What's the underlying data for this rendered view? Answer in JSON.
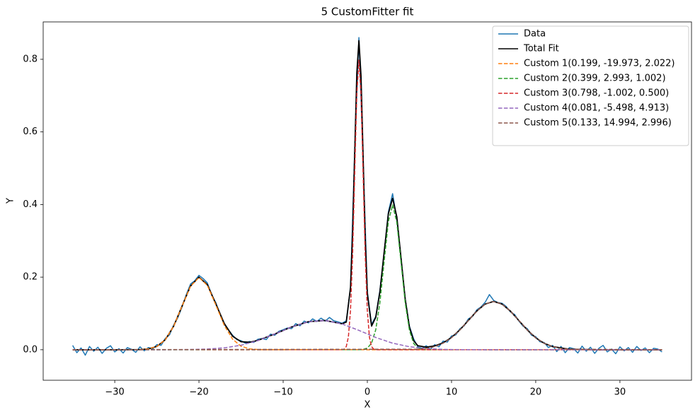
{
  "chart_data": {
    "type": "line",
    "title": "5 CustomFitter fit",
    "xlabel": "X",
    "ylabel": "Y",
    "xlim": [
      -38.5,
      38.5
    ],
    "ylim": [
      -0.084,
      0.903
    ],
    "xticks": [
      {
        "value": -30,
        "label": "−30"
      },
      {
        "value": -20,
        "label": "−20"
      },
      {
        "value": -10,
        "label": "−10"
      },
      0,
      10,
      20,
      30
    ],
    "yticks": [
      {
        "value": 0,
        "label": "0.0"
      },
      0.2,
      0.4,
      0.6,
      0.8
    ],
    "grid": false,
    "legend": "upper right",
    "series": [
      {
        "name": "Data",
        "color": "#1f77b4",
        "linestyle": "solid",
        "x": [
          -35,
          -34.5,
          -34,
          -33.5,
          -33,
          -32.5,
          -32,
          -31.5,
          -31,
          -30.5,
          -30,
          -29.5,
          -29,
          -28.5,
          -28,
          -27.5,
          -27,
          -26.5,
          -26,
          -25.5,
          -25,
          -24.5,
          -24,
          -23.5,
          -23,
          -22.5,
          -22,
          -21.5,
          -21,
          -20.5,
          -20,
          -19.5,
          -19,
          -18.5,
          -18,
          -17.5,
          -17,
          -16.5,
          -16,
          -15.5,
          -15,
          -14.5,
          -14,
          -13.5,
          -13,
          -12.5,
          -12,
          -11.5,
          -11,
          -10.5,
          -10,
          -9.5,
          -9,
          -8.5,
          -8,
          -7.5,
          -7,
          -6.5,
          -6,
          -5.5,
          -5,
          -4.5,
          -4,
          -3.5,
          -3,
          -2.5,
          -2,
          -1.5,
          -1,
          -0.5,
          0,
          0.5,
          1,
          1.5,
          2,
          2.5,
          3,
          3.5,
          4,
          4.5,
          5,
          5.5,
          6,
          6.5,
          7,
          7.5,
          8,
          8.5,
          9,
          9.5,
          10,
          10.5,
          11,
          11.5,
          12,
          12.5,
          13,
          13.5,
          14,
          14.5,
          15,
          15.5,
          16,
          16.5,
          17,
          17.5,
          18,
          18.5,
          19,
          19.5,
          20,
          20.5,
          21,
          21.5,
          22,
          22.5,
          23,
          23.5,
          24,
          24.5,
          25,
          25.5,
          26,
          26.5,
          27,
          27.5,
          28,
          28.5,
          29,
          29.5,
          30,
          30.5,
          31,
          31.5,
          32,
          32.5,
          33,
          33.5,
          34,
          34.5,
          35
        ],
        "values": [
          0.012,
          -0.008,
          0.005,
          -0.015,
          0.009,
          -0.004,
          0.007,
          -0.01,
          0.004,
          0.011,
          -0.006,
          0.003,
          -0.009,
          0.006,
          0.001,
          -0.007,
          0.008,
          -0.003,
          0.006,
          0.002,
          0.014,
          0.012,
          0.031,
          0.041,
          0.068,
          0.089,
          0.118,
          0.152,
          0.181,
          0.19,
          0.205,
          0.196,
          0.184,
          0.151,
          0.13,
          0.098,
          0.07,
          0.055,
          0.04,
          0.028,
          0.025,
          0.018,
          0.023,
          0.02,
          0.029,
          0.031,
          0.028,
          0.043,
          0.04,
          0.051,
          0.055,
          0.06,
          0.058,
          0.072,
          0.066,
          0.079,
          0.074,
          0.085,
          0.078,
          0.087,
          0.079,
          0.089,
          0.08,
          0.077,
          0.073,
          0.08,
          0.17,
          0.55,
          0.86,
          0.52,
          0.16,
          0.07,
          0.092,
          0.165,
          0.27,
          0.38,
          0.43,
          0.36,
          0.25,
          0.14,
          0.065,
          0.03,
          0.008,
          0.004,
          0.011,
          0.001,
          0.014,
          0.008,
          0.024,
          0.021,
          0.038,
          0.041,
          0.058,
          0.066,
          0.085,
          0.092,
          0.11,
          0.118,
          0.131,
          0.152,
          0.136,
          0.13,
          0.128,
          0.119,
          0.104,
          0.097,
          0.079,
          0.065,
          0.058,
          0.04,
          0.036,
          0.022,
          0.02,
          0.006,
          0.012,
          -0.005,
          0.009,
          -0.008,
          0.006,
          0.003,
          -0.009,
          0.01,
          -0.004,
          0.007,
          -0.01,
          0.004,
          0.012,
          -0.006,
          0.002,
          -0.011,
          0.008,
          -0.003,
          0.006,
          -0.007,
          0.009,
          -0.002,
          0.005,
          -0.008,
          0.004,
          0.002,
          -0.006
        ]
      },
      {
        "name": "Total Fit",
        "color": "#000000",
        "linestyle": "solid",
        "x": [
          -35,
          -30,
          -27,
          -26,
          -25,
          -24,
          -23,
          -22,
          -21,
          -20,
          -19,
          -18,
          -17,
          -16,
          -15,
          -14,
          -13,
          -11,
          -9,
          -7,
          -5,
          -3,
          -2.5,
          -2,
          -1.75,
          -1.5,
          -1.25,
          -1,
          -0.75,
          -0.5,
          -0.25,
          0,
          0.5,
          1,
          1.5,
          2,
          2.5,
          3,
          3.5,
          4,
          4.5,
          5,
          5.5,
          6,
          7,
          8,
          9,
          10,
          11,
          12,
          13,
          14,
          15,
          16,
          17,
          18,
          19,
          20,
          21,
          22,
          24,
          27,
          35
        ],
        "values": [
          0,
          0,
          0.0005,
          0.0023,
          0.0091,
          0.0275,
          0.065,
          0.1207,
          0.1755,
          0.2,
          0.1792,
          0.1268,
          0.0727,
          0.0372,
          0.0222,
          0.0205,
          0.0257,
          0.0433,
          0.0628,
          0.0773,
          0.0806,
          0.0715,
          0.0762,
          0.1717,
          0.3211,
          0.5441,
          0.7614,
          0.8514,
          0.7538,
          0.5312,
          0.3054,
          0.1551,
          0.0653,
          0.0893,
          0.1608,
          0.2694,
          0.375,
          0.4171,
          0.3662,
          0.2533,
          0.139,
          0.062,
          0.0249,
          0.0111,
          0.0071,
          0.0106,
          0.019,
          0.0338,
          0.055,
          0.0808,
          0.1066,
          0.1259,
          0.133,
          0.1257,
          0.1063,
          0.0804,
          0.0544,
          0.0329,
          0.0178,
          0.0086,
          0.0015,
          0,
          0
        ]
      },
      {
        "name": "Custom 1(0.199, -19.973, 2.022)",
        "color": "#ff7f0e",
        "linestyle": "dashed",
        "x": [
          -35,
          -28,
          -27,
          -26,
          -25,
          -24,
          -23,
          -22,
          -21,
          -20,
          -19,
          -18,
          -17,
          -16,
          -15,
          -14,
          -13,
          -12,
          35
        ],
        "values": [
          0,
          0.0001,
          0.0005,
          0.0023,
          0.0091,
          0.0274,
          0.0649,
          0.1204,
          0.1749,
          0.199,
          0.1773,
          0.1236,
          0.0675,
          0.0289,
          0.0097,
          0.0025,
          0.0005,
          0.0001,
          0
        ]
      },
      {
        "name": "Custom 2(0.399, 2.993, 1.002)",
        "color": "#2ca02c",
        "linestyle": "dashed",
        "x": [
          -35,
          -1,
          -0.5,
          0,
          0.5,
          1,
          1.5,
          2,
          2.5,
          3,
          3.5,
          4,
          4.5,
          5,
          5.5,
          6,
          6.5,
          7,
          35
        ],
        "values": [
          0,
          0.0001,
          0.0009,
          0.0046,
          0.0181,
          0.0552,
          0.1315,
          0.2442,
          0.3535,
          0.399,
          0.3511,
          0.2408,
          0.1288,
          0.0537,
          0.0174,
          0.0044,
          0.0009,
          0.0001,
          0
        ]
      },
      {
        "name": "Custom 3(0.798, -1.002, 0.500)",
        "color": "#d62728",
        "linestyle": "dashed",
        "x": [
          -35,
          -3,
          -2.75,
          -2.5,
          -2.25,
          -2,
          -1.75,
          -1.5,
          -1.25,
          -1,
          -0.75,
          -0.5,
          -0.25,
          0,
          0.25,
          0.5,
          0.75,
          1,
          35
        ],
        "values": [
          0,
          0.0003,
          0.0018,
          0.009,
          0.0354,
          0.1089,
          0.2606,
          0.486,
          0.7057,
          0.798,
          0.703,
          0.482,
          0.2575,
          0.1072,
          0.0347,
          0.0088,
          0.0017,
          0.0003,
          0
        ]
      },
      {
        "name": "Custom 4(0.081, -5.498, 4.913)",
        "color": "#9467bd",
        "linestyle": "dashed",
        "x": [
          -35,
          -25,
          -23,
          -21,
          -19,
          -17,
          -15,
          -13,
          -11,
          -9,
          -7,
          -5,
          -3,
          -1,
          1,
          3,
          5,
          7,
          9,
          11,
          13,
          15,
          35
        ],
        "values": [
          0,
          0,
          0.0001,
          0.0006,
          0.0019,
          0.0052,
          0.0125,
          0.0252,
          0.0433,
          0.0628,
          0.0773,
          0.0806,
          0.0712,
          0.0533,
          0.0338,
          0.0181,
          0.0083,
          0.0032,
          0.001,
          0.0003,
          0.0001,
          0,
          0
        ]
      },
      {
        "name": "Custom 5(0.133, 14.994, 2.996)",
        "color": "#8c564b",
        "linestyle": "dashed",
        "x": [
          -35,
          6,
          7,
          8,
          9,
          10,
          11,
          12,
          13,
          14,
          15,
          16,
          17,
          18,
          19,
          20,
          21,
          22,
          23,
          24,
          35
        ],
        "values": [
          0,
          0.0015,
          0.0038,
          0.0087,
          0.018,
          0.0332,
          0.0547,
          0.0807,
          0.1066,
          0.1259,
          0.133,
          0.1257,
          0.1063,
          0.0804,
          0.0544,
          0.0329,
          0.0178,
          0.0086,
          0.0037,
          0.0015,
          0
        ]
      }
    ]
  }
}
